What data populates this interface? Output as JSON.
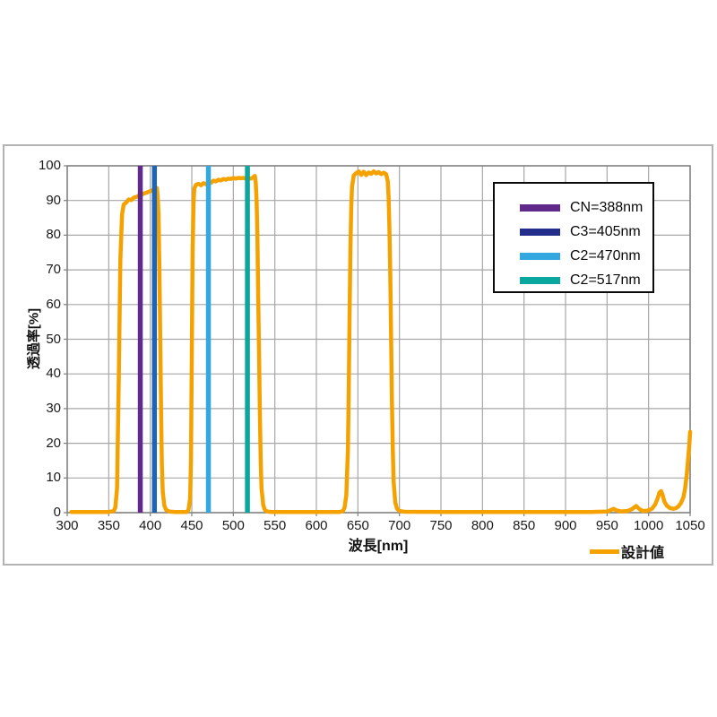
{
  "chart_data": {
    "type": "line",
    "xlabel": "波長[nm]",
    "ylabel": "透過率[%]",
    "xlim": [
      300,
      1050
    ],
    "ylim": [
      0,
      100
    ],
    "x_ticks": [
      300,
      350,
      400,
      450,
      500,
      550,
      600,
      650,
      700,
      750,
      800,
      850,
      900,
      950,
      1000,
      1050
    ],
    "y_ticks": [
      0,
      10,
      20,
      30,
      40,
      50,
      60,
      70,
      80,
      90,
      100
    ],
    "grid": true,
    "legend_position": "top-right",
    "series": [
      {
        "name": "設計値",
        "color": "#F5A200",
        "points": [
          [
            305,
            0.2
          ],
          [
            350,
            0.2
          ],
          [
            356,
            0.5
          ],
          [
            358,
            1.5
          ],
          [
            360,
            7
          ],
          [
            362,
            38
          ],
          [
            364,
            73
          ],
          [
            366,
            86
          ],
          [
            368,
            88.8
          ],
          [
            371,
            89.4
          ],
          [
            374,
            90.3
          ],
          [
            377,
            90.1
          ],
          [
            380,
            90.8
          ],
          [
            383,
            91.0
          ],
          [
            386,
            91.4
          ],
          [
            389,
            91.6
          ],
          [
            392,
            92.0
          ],
          [
            395,
            92.2
          ],
          [
            398,
            92.5
          ],
          [
            401,
            92.8
          ],
          [
            404,
            93.2
          ],
          [
            406,
            93.4
          ],
          [
            408,
            93.6
          ],
          [
            409,
            91
          ],
          [
            410,
            86
          ],
          [
            411,
            70
          ],
          [
            412,
            50
          ],
          [
            413,
            30
          ],
          [
            414,
            14
          ],
          [
            415,
            6
          ],
          [
            417,
            2
          ],
          [
            419,
            0.8
          ],
          [
            423,
            0.3
          ],
          [
            430,
            0.2
          ],
          [
            444,
            0.2
          ],
          [
            446,
            0.8
          ],
          [
            448,
            4
          ],
          [
            449,
            15
          ],
          [
            450,
            45
          ],
          [
            451,
            75
          ],
          [
            452,
            89
          ],
          [
            453,
            93.5
          ],
          [
            455,
            94.5
          ],
          [
            458,
            94.8
          ],
          [
            461,
            94.4
          ],
          [
            464,
            95.0
          ],
          [
            467,
            94.7
          ],
          [
            470,
            95.3
          ],
          [
            473,
            95.1
          ],
          [
            476,
            95.7
          ],
          [
            479,
            95.5
          ],
          [
            482,
            96.0
          ],
          [
            485,
            95.8
          ],
          [
            488,
            96.2
          ],
          [
            491,
            96.0
          ],
          [
            494,
            96.3
          ],
          [
            497,
            96.2
          ],
          [
            500,
            96.5
          ],
          [
            503,
            96.3
          ],
          [
            506,
            96.5
          ],
          [
            509,
            96.4
          ],
          [
            512,
            96.5
          ],
          [
            515,
            96.3
          ],
          [
            518,
            96.5
          ],
          [
            521,
            96.3
          ],
          [
            524,
            96.7
          ],
          [
            526,
            97.1
          ],
          [
            527,
            95
          ],
          [
            528,
            90
          ],
          [
            529,
            80
          ],
          [
            530,
            62
          ],
          [
            531,
            45
          ],
          [
            532,
            28
          ],
          [
            533,
            15
          ],
          [
            534,
            7
          ],
          [
            536,
            2.2
          ],
          [
            538,
            0.8
          ],
          [
            541,
            0.3
          ],
          [
            546,
            0.2
          ],
          [
            628,
            0.2
          ],
          [
            632,
            0.5
          ],
          [
            634,
            1.5
          ],
          [
            636,
            5
          ],
          [
            638,
            18
          ],
          [
            639,
            35
          ],
          [
            640,
            58
          ],
          [
            641,
            76
          ],
          [
            642,
            88
          ],
          [
            643,
            94
          ],
          [
            645,
            97.2
          ],
          [
            648,
            97.9
          ],
          [
            651,
            98.4
          ],
          [
            654,
            97.4
          ],
          [
            657,
            98.3
          ],
          [
            660,
            97.3
          ],
          [
            663,
            98.1
          ],
          [
            666,
            97.7
          ],
          [
            669,
            98.4
          ],
          [
            672,
            97.8
          ],
          [
            675,
            98.2
          ],
          [
            678,
            97.6
          ],
          [
            681,
            98.0
          ],
          [
            684,
            97.6
          ],
          [
            686,
            95.5
          ],
          [
            687,
            91
          ],
          [
            688,
            82
          ],
          [
            689,
            68
          ],
          [
            690,
            50
          ],
          [
            691,
            32
          ],
          [
            692,
            18
          ],
          [
            693,
            9
          ],
          [
            695,
            3
          ],
          [
            697,
            1.2
          ],
          [
            700,
            0.5
          ],
          [
            706,
            0.25
          ],
          [
            760,
            0.2
          ],
          [
            850,
            0.2
          ],
          [
            930,
            0.2
          ],
          [
            950,
            0.3
          ],
          [
            955,
            0.8
          ],
          [
            958,
            1.1
          ],
          [
            962,
            0.6
          ],
          [
            967,
            0.35
          ],
          [
            975,
            0.5
          ],
          [
            980,
            1.0
          ],
          [
            985,
            1.9
          ],
          [
            989,
            1.0
          ],
          [
            993,
            0.5
          ],
          [
            999,
            0.6
          ],
          [
            1004,
            1.1
          ],
          [
            1008,
            2.4
          ],
          [
            1011,
            4.2
          ],
          [
            1013,
            5.8
          ],
          [
            1015,
            6.2
          ],
          [
            1017,
            5.0
          ],
          [
            1019,
            3.2
          ],
          [
            1022,
            2.0
          ],
          [
            1026,
            1.3
          ],
          [
            1030,
            1.1
          ],
          [
            1033,
            1.3
          ],
          [
            1036,
            1.8
          ],
          [
            1039,
            2.8
          ],
          [
            1042,
            4.5
          ],
          [
            1044,
            7
          ],
          [
            1046,
            11
          ],
          [
            1048,
            16.5
          ],
          [
            1049,
            19.5
          ],
          [
            1050,
            23.3
          ]
        ]
      }
    ],
    "markers": [
      {
        "label": "CN=388nm",
        "wavelength": 388,
        "legend_color": "#5F2A8C",
        "line_color": "#5F2A8C"
      },
      {
        "label": "C3=405nm",
        "wavelength": 405,
        "legend_color": "#232E8C",
        "line_color": "#1E64B4"
      },
      {
        "label": "C2=470nm",
        "wavelength": 470,
        "legend_color": "#33A8E0",
        "line_color": "#33A8E0"
      },
      {
        "label": "C2=517nm",
        "wavelength": 517,
        "legend_color": "#0AA79F",
        "line_color": "#0AA79F"
      }
    ],
    "bottom_legend_label": "設計値"
  },
  "colors": {
    "grid": "#A7A7A7",
    "axis": "#7F7F7F",
    "frame_border": "#B3B3B3",
    "legend_border": "#0A0A0A",
    "curve": "#F5A200"
  }
}
